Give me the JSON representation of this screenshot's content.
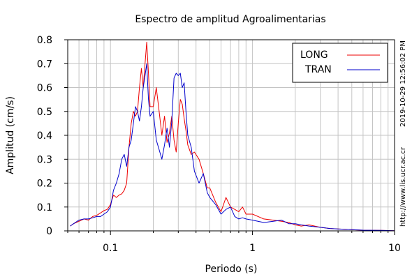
{
  "chart_data": {
    "type": "line",
    "title": "Espectro de amplitud Agroalimentarias",
    "xlabel": "Periodo (s)",
    "ylabel": "Amplitud (cm/s)",
    "x_scale": "log",
    "xlim": [
      0.05,
      10
    ],
    "ylim": [
      0,
      0.8
    ],
    "x_ticks": [
      {
        "value": 0.1,
        "label": "0.1"
      },
      {
        "value": 1,
        "label": "1"
      },
      {
        "value": 10,
        "label": "10"
      }
    ],
    "y_ticks": [
      {
        "value": 0,
        "label": "0"
      },
      {
        "value": 0.1,
        "label": "0.1"
      },
      {
        "value": 0.2,
        "label": "0.2"
      },
      {
        "value": 0.3,
        "label": "0.3"
      },
      {
        "value": 0.4,
        "label": "0.4"
      },
      {
        "value": 0.5,
        "label": "0.5"
      },
      {
        "value": 0.6,
        "label": "0.6"
      },
      {
        "value": 0.7,
        "label": "0.7"
      },
      {
        "value": 0.8,
        "label": "0.8"
      }
    ],
    "grid": true,
    "legend_position": "top-right",
    "series": [
      {
        "name": "LONG",
        "color": "#ee0000",
        "x": [
          0.052,
          0.055,
          0.06,
          0.065,
          0.07,
          0.075,
          0.08,
          0.085,
          0.09,
          0.095,
          0.1,
          0.105,
          0.11,
          0.115,
          0.12,
          0.125,
          0.13,
          0.135,
          0.14,
          0.145,
          0.15,
          0.155,
          0.16,
          0.165,
          0.17,
          0.175,
          0.18,
          0.185,
          0.19,
          0.2,
          0.21,
          0.22,
          0.23,
          0.24,
          0.25,
          0.26,
          0.27,
          0.28,
          0.29,
          0.3,
          0.31,
          0.32,
          0.33,
          0.34,
          0.35,
          0.37,
          0.39,
          0.42,
          0.45,
          0.48,
          0.5,
          0.55,
          0.6,
          0.65,
          0.7,
          0.75,
          0.8,
          0.85,
          0.9,
          1.0,
          1.2,
          1.4,
          1.6,
          1.8,
          2.0,
          2.2,
          2.5,
          3.0,
          3.5,
          4.0,
          5.0,
          6.0,
          8.0,
          10.0
        ],
        "values": [
          0.02,
          0.03,
          0.04,
          0.05,
          0.045,
          0.06,
          0.065,
          0.075,
          0.085,
          0.09,
          0.11,
          0.15,
          0.14,
          0.15,
          0.155,
          0.17,
          0.2,
          0.35,
          0.45,
          0.5,
          0.48,
          0.5,
          0.6,
          0.68,
          0.6,
          0.7,
          0.79,
          0.66,
          0.52,
          0.52,
          0.6,
          0.5,
          0.4,
          0.48,
          0.37,
          0.41,
          0.48,
          0.38,
          0.33,
          0.45,
          0.55,
          0.53,
          0.47,
          0.42,
          0.36,
          0.32,
          0.33,
          0.3,
          0.24,
          0.18,
          0.18,
          0.12,
          0.08,
          0.14,
          0.1,
          0.09,
          0.08,
          0.1,
          0.07,
          0.07,
          0.05,
          0.045,
          0.04,
          0.035,
          0.025,
          0.02,
          0.025,
          0.015,
          0.01,
          0.008,
          0.005,
          0.003,
          0.002,
          0.001
        ]
      },
      {
        "name": "TRAN",
        "color": "#0000cc",
        "x": [
          0.052,
          0.055,
          0.06,
          0.065,
          0.07,
          0.075,
          0.08,
          0.085,
          0.09,
          0.095,
          0.1,
          0.105,
          0.11,
          0.115,
          0.12,
          0.125,
          0.13,
          0.135,
          0.14,
          0.145,
          0.15,
          0.155,
          0.16,
          0.165,
          0.17,
          0.175,
          0.18,
          0.185,
          0.19,
          0.2,
          0.21,
          0.22,
          0.23,
          0.24,
          0.25,
          0.26,
          0.27,
          0.28,
          0.29,
          0.3,
          0.31,
          0.32,
          0.33,
          0.34,
          0.35,
          0.37,
          0.39,
          0.42,
          0.45,
          0.48,
          0.5,
          0.55,
          0.6,
          0.65,
          0.7,
          0.75,
          0.8,
          0.85,
          0.9,
          1.0,
          1.2,
          1.4,
          1.6,
          1.8,
          2.0,
          2.2,
          2.5,
          3.0,
          3.5,
          4.0,
          5.0,
          6.0,
          8.0,
          10.0
        ],
        "values": [
          0.02,
          0.03,
          0.045,
          0.05,
          0.05,
          0.055,
          0.06,
          0.06,
          0.07,
          0.08,
          0.1,
          0.17,
          0.2,
          0.24,
          0.3,
          0.32,
          0.27,
          0.35,
          0.38,
          0.45,
          0.52,
          0.5,
          0.46,
          0.52,
          0.6,
          0.65,
          0.7,
          0.55,
          0.48,
          0.5,
          0.38,
          0.34,
          0.3,
          0.36,
          0.43,
          0.35,
          0.46,
          0.64,
          0.66,
          0.65,
          0.66,
          0.6,
          0.62,
          0.5,
          0.4,
          0.35,
          0.25,
          0.2,
          0.24,
          0.16,
          0.14,
          0.11,
          0.07,
          0.09,
          0.1,
          0.06,
          0.05,
          0.055,
          0.05,
          0.045,
          0.035,
          0.04,
          0.045,
          0.03,
          0.03,
          0.025,
          0.02,
          0.015,
          0.01,
          0.008,
          0.005,
          0.003,
          0.002,
          0.001
        ]
      }
    ]
  },
  "side_text": {
    "timestamp": "2019-10-29 12:56:02 PM",
    "url": "http://www.lis.ucr.ac.cr"
  }
}
